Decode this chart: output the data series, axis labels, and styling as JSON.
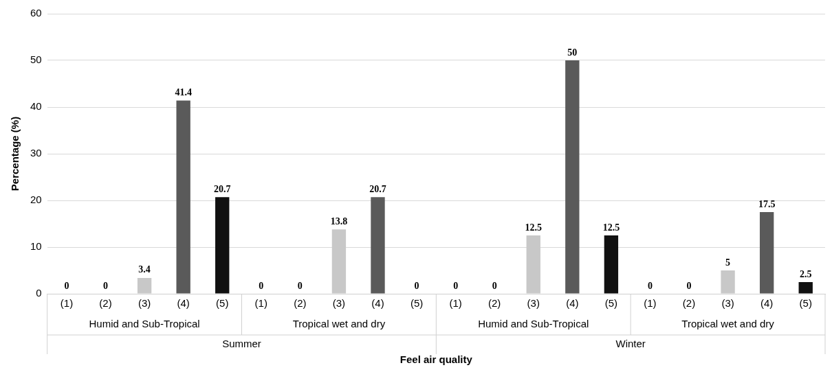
{
  "chart_data": {
    "type": "bar",
    "xlabel": "Feel air quality",
    "ylabel": "Percentage (%)",
    "categories": [
      "(1)",
      "(2)",
      "(3)",
      "(4)",
      "(5)",
      "(1)",
      "(2)",
      "(3)",
      "(4)",
      "(5)",
      "(1)",
      "(2)",
      "(3)",
      "(4)",
      "(5)",
      "(1)",
      "(2)",
      "(3)",
      "(4)",
      "(5)"
    ],
    "values": [
      0,
      0,
      3.4,
      41.4,
      20.7,
      0,
      0,
      13.8,
      20.7,
      0,
      0,
      0,
      12.5,
      50,
      12.5,
      0,
      0,
      5,
      17.5,
      2.5
    ],
    "colors": [
      "#d9d9d9",
      "#a6a6a6",
      "#c8c8c8",
      "#5a5a5a",
      "#111111",
      "#d9d9d9",
      "#a6a6a6",
      "#c8c8c8",
      "#5a5a5a",
      "#111111",
      "#d9d9d9",
      "#a6a6a6",
      "#c8c8c8",
      "#5a5a5a",
      "#111111",
      "#d9d9d9",
      "#a6a6a6",
      "#c8c8c8",
      "#5a5a5a",
      "#111111"
    ],
    "ylim": [
      0,
      60
    ],
    "yticks": [
      0,
      10,
      20,
      30,
      40,
      50,
      60
    ],
    "grid": "y",
    "data_labels": true,
    "legend": false,
    "annotations": [
      "Humid and Sub-Tropical",
      "Tropical wet and dry",
      "Humid and Sub-Tropical",
      "Tropical wet and dry",
      "Summer",
      "Winter"
    ]
  }
}
